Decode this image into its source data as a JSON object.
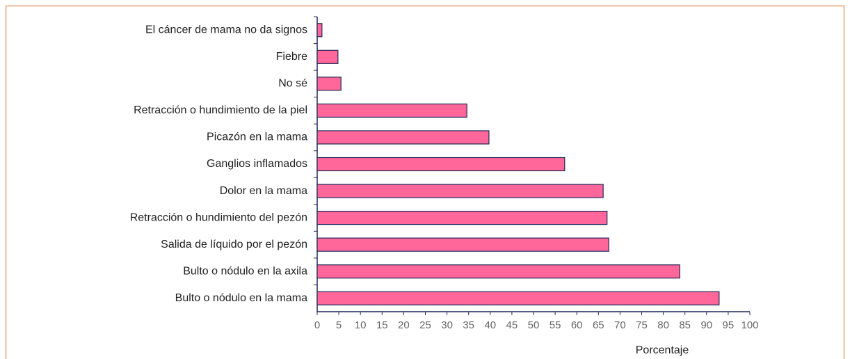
{
  "chart_data": {
    "type": "barh",
    "categories": [
      "El cáncer de mama no da signos",
      "Fiebre",
      "No sé",
      "Retracción o hundimiento de la piel",
      "Picazón en la mama",
      "Ganglios inflamados",
      "Dolor en la mama",
      "Retracción o hundimiento del pezón",
      "Salida de líquido por el pezón",
      "Bulto o nódulo en la axila",
      "Bulto o nódulo en la mama"
    ],
    "values": [
      1.1,
      4.8,
      5.5,
      34.6,
      39.7,
      57.2,
      66.1,
      67.0,
      67.4,
      83.8,
      92.9
    ],
    "color": "#ff6699",
    "xlabel": "Porcentaje",
    "xlim": [
      0,
      100
    ],
    "xticks": [
      0,
      5,
      10,
      15,
      20,
      25,
      30,
      35,
      40,
      45,
      50,
      55,
      60,
      65,
      70,
      75,
      80,
      85,
      90,
      95,
      100
    ]
  }
}
